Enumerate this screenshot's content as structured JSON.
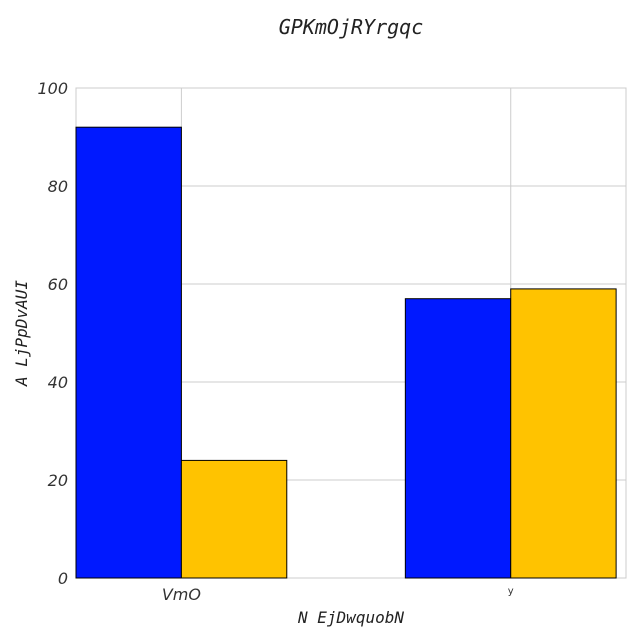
{
  "chart_data": {
    "type": "bar",
    "title": "GPKmOjRYrgqc",
    "xlabel": "N EjDwquobN",
    "ylabel": "A LjPpDvAUI",
    "categories": [
      "VmO",
      "y"
    ],
    "series": [
      {
        "values": [
          92,
          57
        ],
        "color": "#0019ff"
      },
      {
        "values": [
          24,
          59
        ],
        "color": "#ffc300"
      }
    ],
    "ylim": [
      0,
      100
    ],
    "yticks": [
      0,
      20,
      40,
      60,
      80,
      100
    ],
    "grid": true
  }
}
